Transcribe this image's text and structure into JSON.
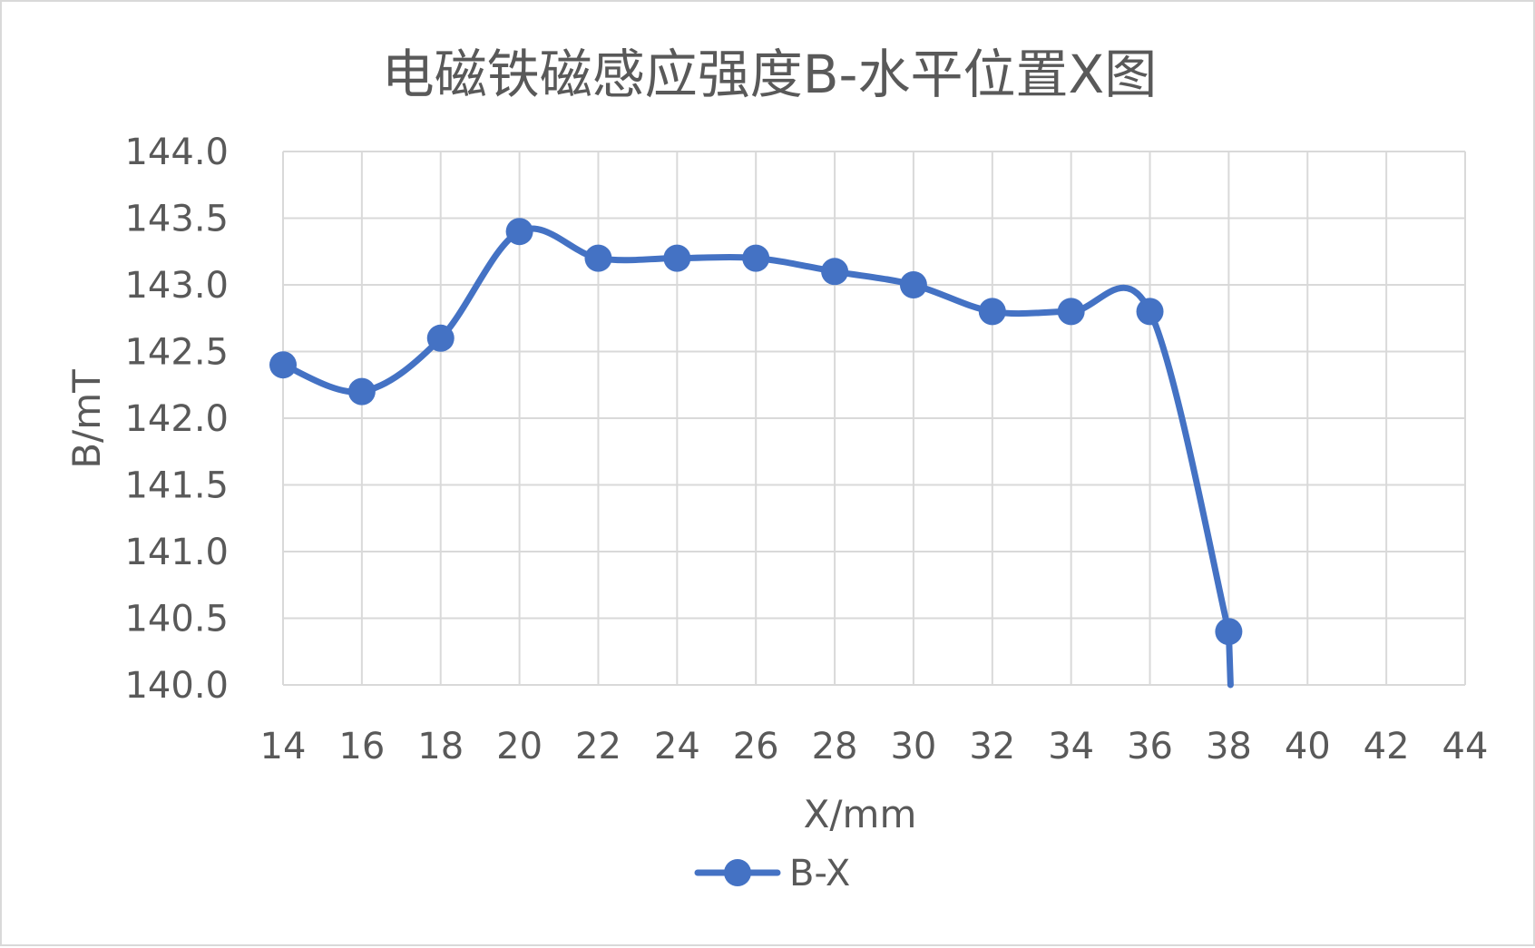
{
  "chart_data": {
    "type": "line",
    "title": "电磁铁磁感应强度B-水平位置X图",
    "xlabel": "X/mm",
    "ylabel": "B/mT",
    "xlim": [
      14,
      44
    ],
    "ylim": [
      140.0,
      144.0
    ],
    "x_ticks": [
      "14",
      "16",
      "18",
      "20",
      "22",
      "24",
      "26",
      "28",
      "30",
      "32",
      "34",
      "36",
      "38",
      "40",
      "42",
      "44"
    ],
    "y_ticks": [
      "140.0",
      "140.5",
      "141.0",
      "141.5",
      "142.0",
      "142.5",
      "143.0",
      "143.5",
      "144.0"
    ],
    "grid": true,
    "smooth": true,
    "legend_position": "bottom",
    "series": [
      {
        "name": "B-X",
        "color": "#4472C4",
        "x": [
          14,
          16,
          18,
          20,
          22,
          24,
          26,
          28,
          30,
          32,
          34,
          36,
          38
        ],
        "y": [
          142.4,
          142.2,
          142.6,
          143.4,
          143.2,
          143.2,
          143.2,
          143.1,
          143.0,
          142.8,
          142.8,
          142.8,
          140.4
        ]
      }
    ]
  }
}
